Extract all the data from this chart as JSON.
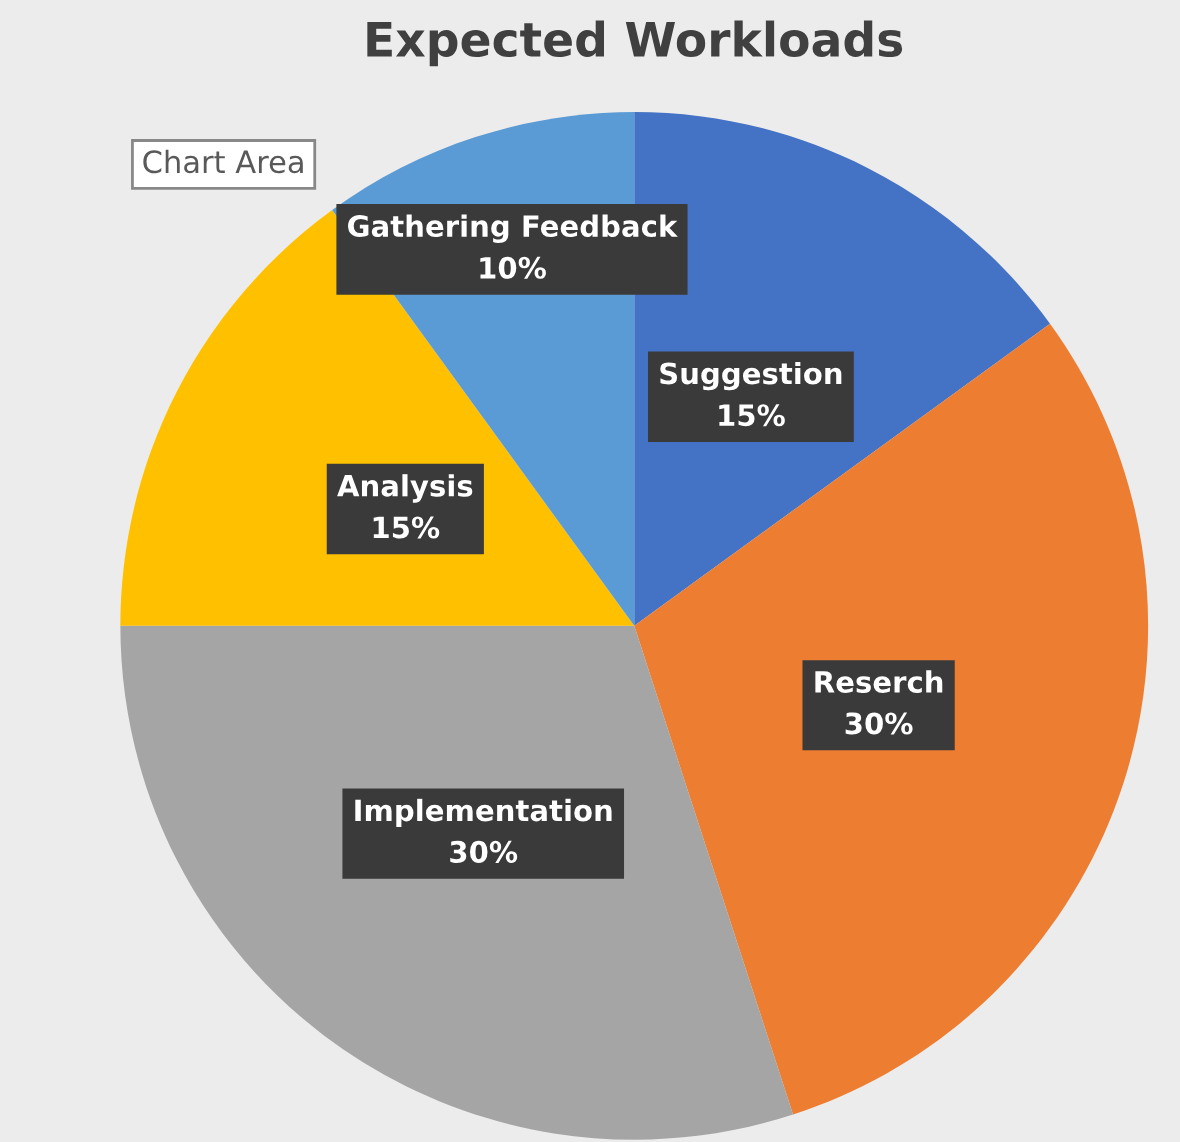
{
  "chart_data": {
    "type": "pie",
    "title": "Expected Workloads",
    "categories": [
      "Suggestion",
      "Reserch",
      "Implementation",
      "Analysis",
      "Gathering Feedback"
    ],
    "values": [
      15,
      30,
      30,
      15,
      10
    ],
    "value_labels": [
      "15%",
      "30%",
      "30%",
      "15%",
      "10%"
    ],
    "colors": [
      "#4472c4",
      "#ed7d31",
      "#a5a5a5",
      "#ffc000",
      "#5b9bd5"
    ],
    "annotations": [
      "Chart Area"
    ],
    "legend": false
  }
}
